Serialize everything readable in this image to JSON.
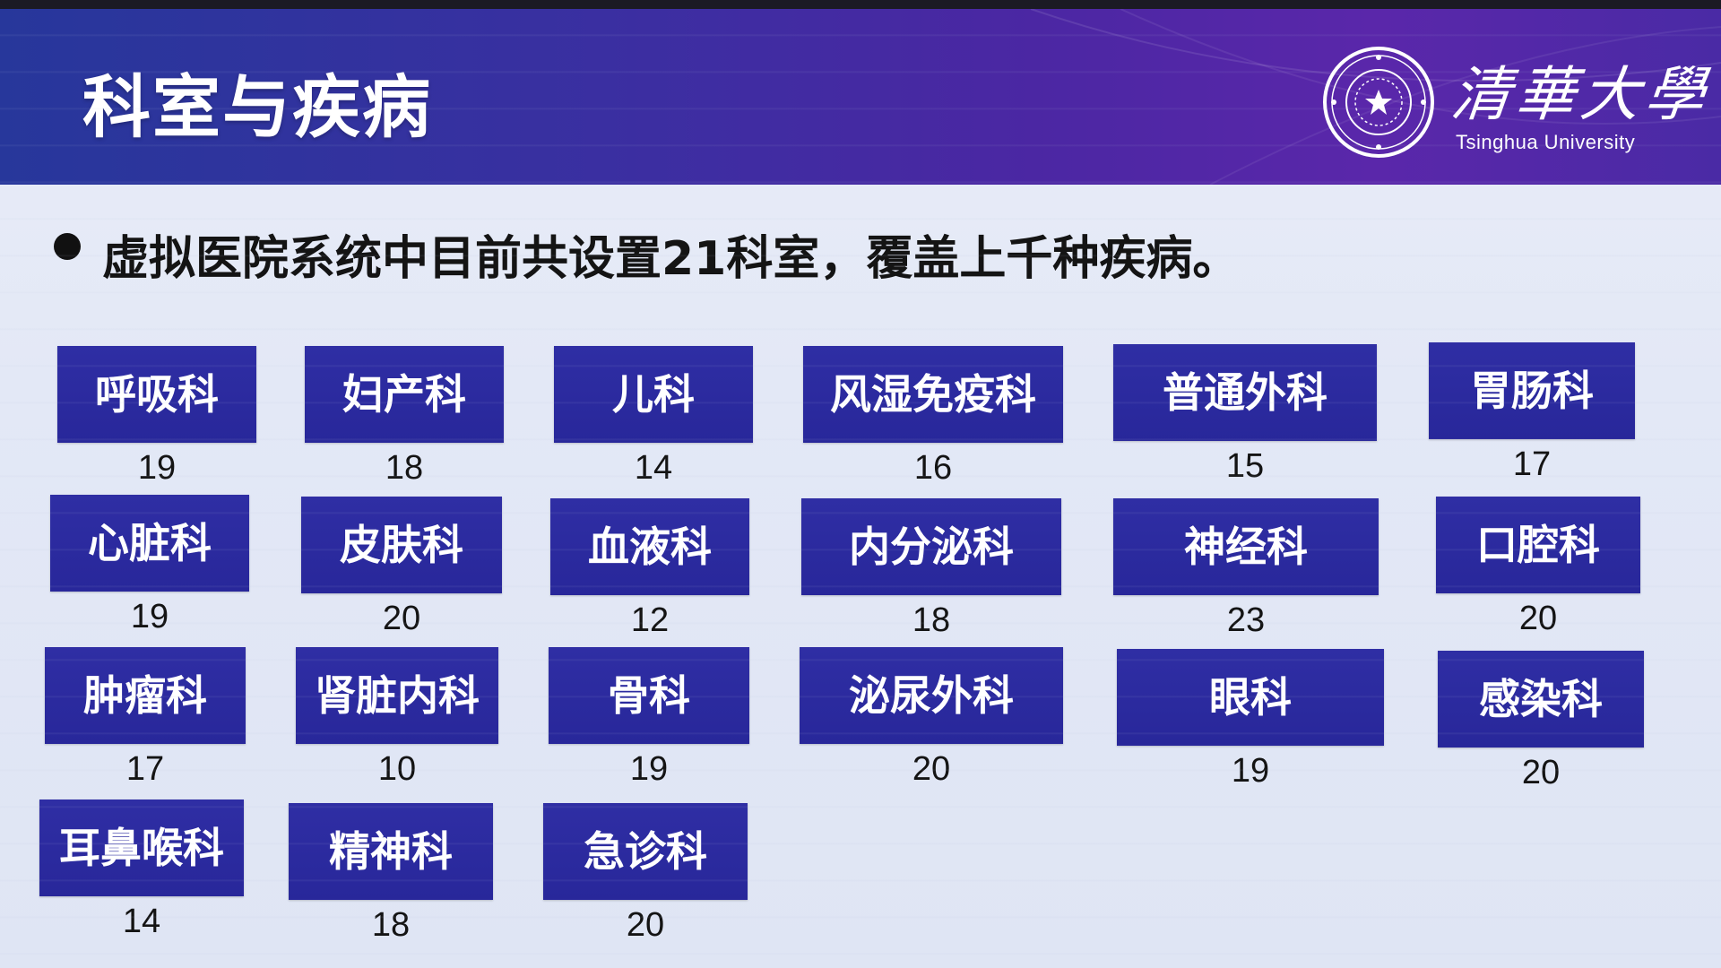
{
  "header": {
    "title": "科室与疾病",
    "brand_cn": "清華大學",
    "brand_en": "Tsinghua University",
    "seal_icon": "tsinghua-seal-icon"
  },
  "bullet": {
    "text": "虚拟医院系统中目前共设置21科室，覆盖上千种疾病。"
  },
  "colors": {
    "header_start": "#27379b",
    "header_end": "#5a27aa",
    "dept_box": "#2b2a9a",
    "background": "#e3e8f6"
  },
  "departments": [
    {
      "name": "呼吸科",
      "count": "19"
    },
    {
      "name": "妇产科",
      "count": "18"
    },
    {
      "name": "儿科",
      "count": "14"
    },
    {
      "name": "风湿免疫科",
      "count": "16"
    },
    {
      "name": "普通外科",
      "count": "15"
    },
    {
      "name": "胃肠科",
      "count": "17"
    },
    {
      "name": "心脏科",
      "count": "19"
    },
    {
      "name": "皮肤科",
      "count": "20"
    },
    {
      "name": "血液科",
      "count": "12"
    },
    {
      "name": "内分泌科",
      "count": "18"
    },
    {
      "name": "神经科",
      "count": "23"
    },
    {
      "name": "口腔科",
      "count": "20"
    },
    {
      "name": "肿瘤科",
      "count": "17"
    },
    {
      "name": "肾脏内科",
      "count": "10"
    },
    {
      "name": "骨科",
      "count": "19"
    },
    {
      "name": "泌尿外科",
      "count": "20"
    },
    {
      "name": "眼科",
      "count": "19"
    },
    {
      "name": "感染科",
      "count": "20"
    },
    {
      "name": "耳鼻喉科",
      "count": "14"
    },
    {
      "name": "精神科",
      "count": "18"
    },
    {
      "name": "急诊科",
      "count": "20"
    }
  ]
}
